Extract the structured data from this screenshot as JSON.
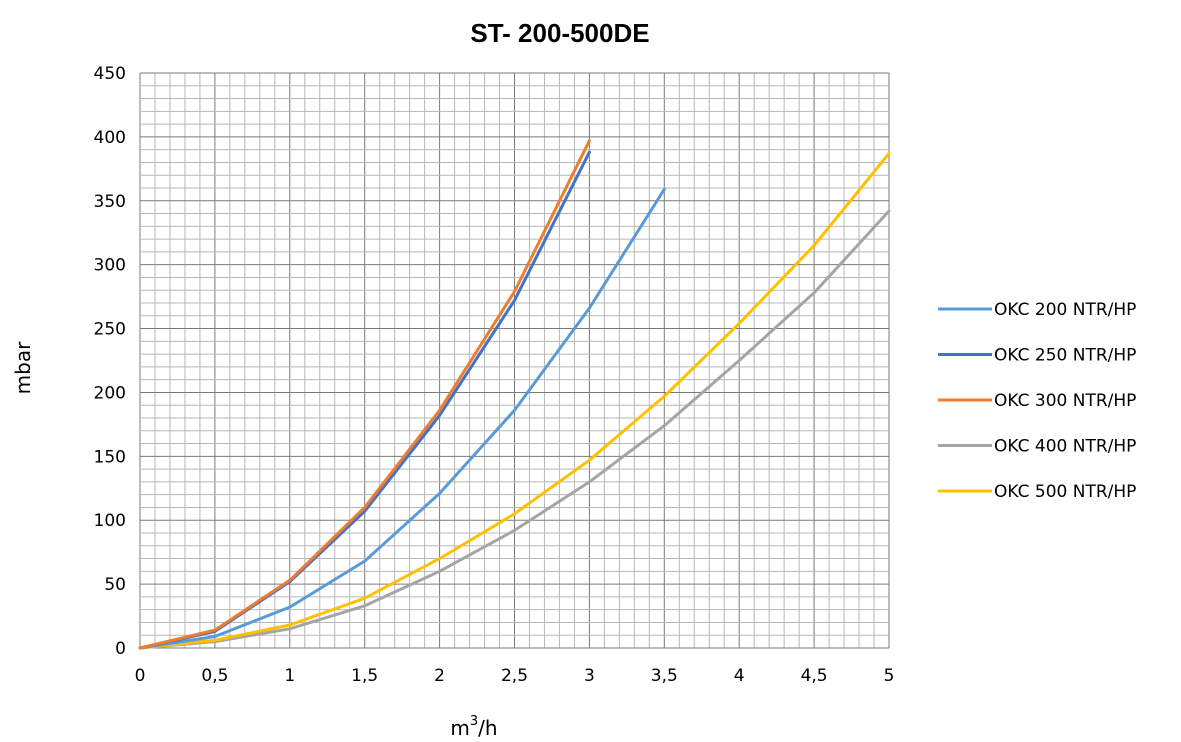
{
  "chart_data": {
    "type": "line",
    "title": "ST- 200-500DE",
    "xlabel_base": "m",
    "xlabel_sup": "3",
    "xlabel_tail": "/h",
    "ylabel": "mbar",
    "xlim": [
      0,
      5
    ],
    "ylim": [
      0,
      450
    ],
    "x_ticks": [
      "0",
      "0,5",
      "1",
      "1,5",
      "2",
      "2,5",
      "3",
      "3,5",
      "4",
      "4,5",
      "5"
    ],
    "y_ticks": [
      "0",
      "50",
      "100",
      "150",
      "200",
      "250",
      "300",
      "350",
      "400",
      "450"
    ],
    "grid": true,
    "legend_position": "right",
    "series": [
      {
        "name": "OKC 200 NTR/HP",
        "color": "#5b9bd5",
        "x": [
          0,
          0.5,
          1,
          1.5,
          2,
          2.5,
          3,
          3.5
        ],
        "y": [
          0,
          9,
          32,
          68,
          121,
          186,
          266,
          359
        ]
      },
      {
        "name": "OKC 250 NTR/HP",
        "color": "#4472c4",
        "x": [
          0,
          0.5,
          1,
          1.5,
          2,
          2.5,
          3
        ],
        "y": [
          0,
          13,
          52,
          107,
          182,
          272,
          388
        ]
      },
      {
        "name": "OKC 300 NTR/HP",
        "color": "#ed7d31",
        "x": [
          0,
          0.5,
          1,
          1.5,
          2,
          2.5,
          3
        ],
        "y": [
          0,
          14,
          53,
          110,
          186,
          279,
          397
        ]
      },
      {
        "name": "OKC 400 NTR/HP",
        "color": "#a5a5a5",
        "x": [
          0,
          0.5,
          1,
          1.5,
          2,
          2.5,
          3,
          3.5,
          4,
          4.5,
          5
        ],
        "y": [
          0,
          5,
          15,
          33,
          60,
          92,
          130,
          174,
          225,
          278,
          342
        ]
      },
      {
        "name": "OKC 500 NTR/HP",
        "color": "#ffc000",
        "x": [
          0,
          0.5,
          1,
          1.5,
          2,
          2.5,
          3,
          3.5,
          4,
          4.5,
          5
        ],
        "y": [
          0,
          6,
          18,
          39,
          70,
          105,
          147,
          197,
          254,
          315,
          387
        ]
      }
    ]
  }
}
